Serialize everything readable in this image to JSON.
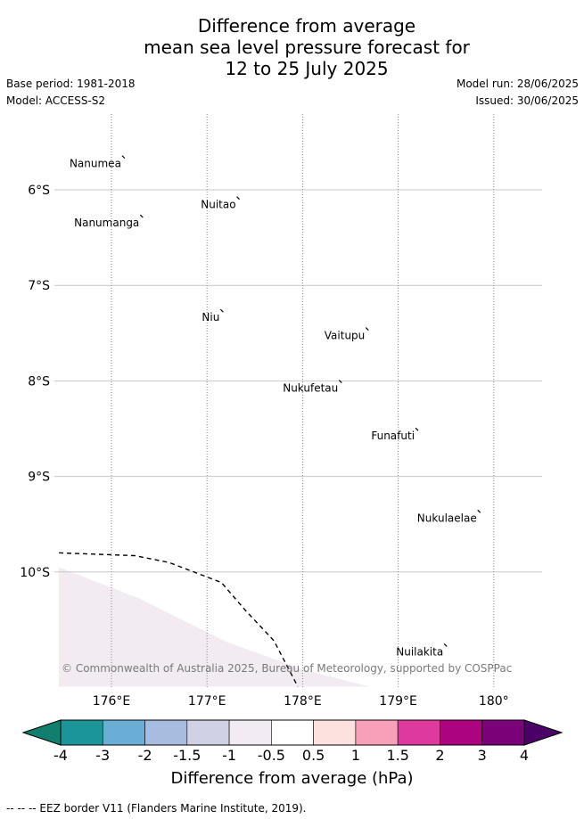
{
  "title": {
    "line1": "Difference from average",
    "line2": "mean sea level pressure forecast for",
    "line3": "12 to 25 July 2025"
  },
  "meta": {
    "base_period": "Base period: 1981-2018",
    "model": "Model: ACCESS-S2",
    "model_run": "Model run: 28/06/2025",
    "issued": "Issued: 30/06/2025"
  },
  "map": {
    "lon_range": [
      175.4,
      180.5
    ],
    "lat_range": [
      -11.2,
      -5.2
    ],
    "lon_ticks": [
      "176°E",
      "177°E",
      "178°E",
      "179°E",
      "180°"
    ],
    "lon_values": [
      176,
      177,
      178,
      179,
      180
    ],
    "lat_ticks": [
      "6°S",
      "7°S",
      "8°S",
      "9°S",
      "10°S"
    ],
    "lat_values": [
      -6,
      -7,
      -8,
      -9,
      -10
    ],
    "places": [
      {
        "name": "Nanumea",
        "lon": 176.13,
        "lat": -5.67
      },
      {
        "name": "Nuitao",
        "lon": 177.33,
        "lat": -6.1
      },
      {
        "name": "Nanumanga",
        "lon": 176.32,
        "lat": -6.29
      },
      {
        "name": "Niu",
        "lon": 177.16,
        "lat": -7.28
      },
      {
        "name": "Vaitupu",
        "lon": 178.68,
        "lat": -7.47
      },
      {
        "name": "Nukufetau",
        "lon": 178.4,
        "lat": -8.02
      },
      {
        "name": "Funafuti",
        "lon": 179.2,
        "lat": -8.52
      },
      {
        "name": "Nukulaelae",
        "lon": 179.85,
        "lat": -9.38
      },
      {
        "name": "Nuilakita",
        "lon": 179.5,
        "lat": -10.78
      }
    ],
    "eez_border": [
      [
        175.45,
        -9.8
      ],
      [
        176.0,
        -9.82
      ],
      [
        176.25,
        -9.83
      ],
      [
        176.6,
        -9.9
      ],
      [
        177.15,
        -10.11
      ],
      [
        177.4,
        -10.4
      ],
      [
        177.7,
        -10.72
      ],
      [
        177.95,
        -11.2
      ]
    ],
    "shaded_region": [
      [
        175.45,
        -9.95
      ],
      [
        176.3,
        -10.28
      ],
      [
        177.2,
        -10.73
      ],
      [
        178.0,
        -11.02
      ],
      [
        178.7,
        -11.2
      ],
      [
        175.45,
        -11.2
      ]
    ],
    "shaded_color": "#f3ebf2",
    "copyright": "© Commonwealth of Australia 2025, Bureau of Meteorology, supported by COSPPac"
  },
  "colorbar": {
    "label": "Difference from average (hPa)",
    "ticks": [
      "-4",
      "-3",
      "-2",
      "-1.5",
      "-1",
      "-0.5",
      "0.5",
      "1",
      "1.5",
      "2",
      "3",
      "4"
    ],
    "colors": [
      "#1c9599",
      "#6aaed5",
      "#a8bcdf",
      "#d1d1e5",
      "#f2ebf3",
      "#ffffff",
      "#fde1de",
      "#f8a0ba",
      "#de3a9e",
      "#ac0380",
      "#7a0177"
    ],
    "under_color": "#127f6e",
    "over_color": "#4b0068"
  },
  "footnote": "-- -- -- EEZ border V11 (Flanders Marine Institute, 2019)."
}
